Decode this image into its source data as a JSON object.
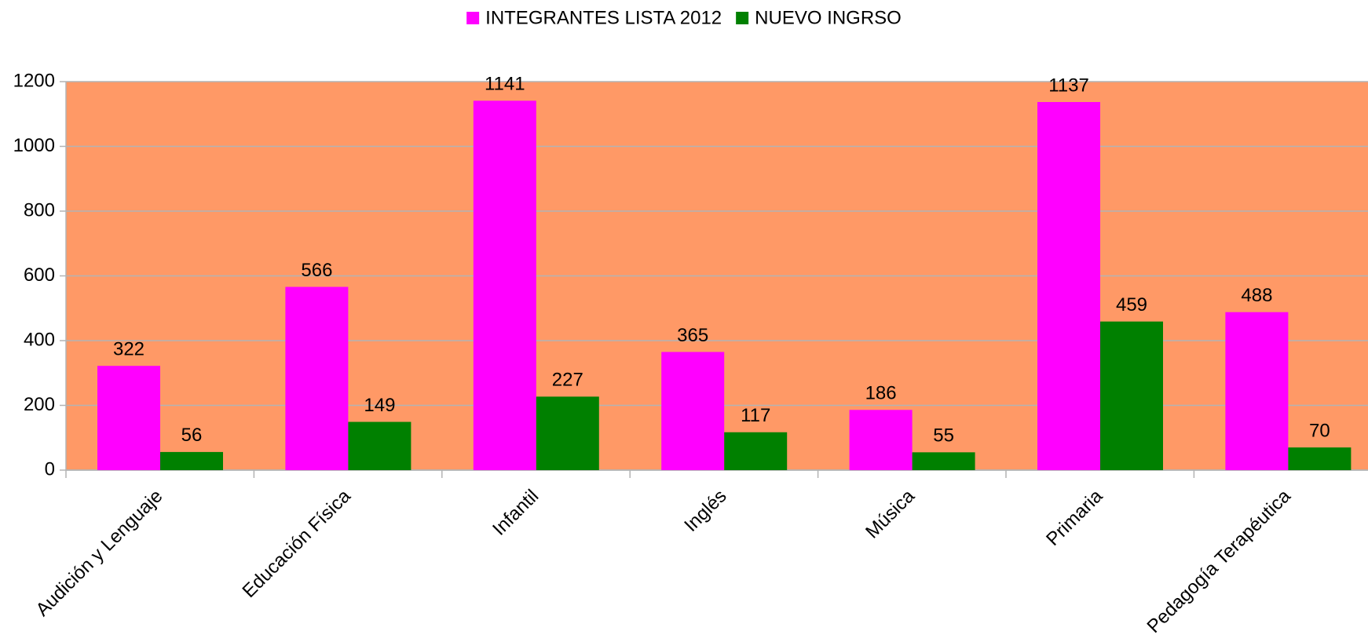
{
  "chart_data": {
    "type": "bar",
    "categories": [
      "Audición y Lenguaje",
      "Educación Física",
      "Infantil",
      "Inglés",
      "Música",
      "Primaria",
      "Pedagogía Terapéutica"
    ],
    "series": [
      {
        "name": "INTEGRANTES LISTA 2012",
        "color": "#ff00ff",
        "values": [
          322,
          566,
          1141,
          365,
          186,
          1137,
          488
        ]
      },
      {
        "name": "NUEVO INGRSO",
        "color": "#008000",
        "values": [
          56,
          149,
          227,
          117,
          55,
          459,
          70
        ]
      }
    ],
    "ylim": [
      0,
      1200
    ],
    "yticks": [
      0,
      200,
      400,
      600,
      800,
      1000,
      1200
    ],
    "grid": true,
    "plot_background": "#ff9966",
    "legend": "top"
  }
}
